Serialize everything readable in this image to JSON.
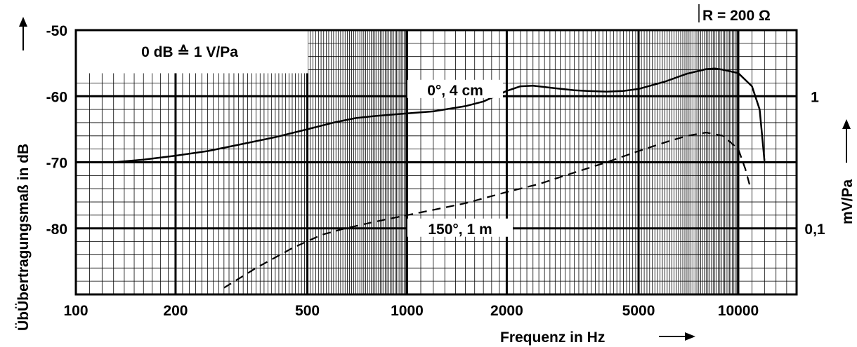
{
  "chart_data": {
    "type": "line",
    "title": "",
    "reference_note": "0 dB ≙ 1 V/Pa",
    "impedance_note": "R = 200 Ω",
    "xlabel": "Frequenz in Hz",
    "ylabel": "ÜbÜbertragungsmaß in dB",
    "y2label": "mV/Pa",
    "x_scale": "log",
    "xlim": [
      100,
      15000
    ],
    "ylim": [
      -90,
      -50
    ],
    "x_ticks": [
      100,
      200,
      500,
      1000,
      2000,
      5000,
      10000
    ],
    "x_tick_labels": [
      "100",
      "200",
      "500",
      "1000",
      "2000",
      "5000",
      "10000"
    ],
    "y_ticks": [
      -50,
      -60,
      -70,
      -80
    ],
    "y_tick_labels": [
      "-50",
      "-60",
      "-70",
      "-80"
    ],
    "y2_ticks": [
      {
        "at_db": -60,
        "label": "1"
      },
      {
        "at_db": -80,
        "label": "0,1"
      }
    ],
    "grid": true,
    "series": [
      {
        "name": "0°, 4 cm",
        "style": "solid",
        "color": "#000000",
        "x": [
          100,
          130,
          160,
          200,
          250,
          300,
          400,
          500,
          600,
          700,
          800,
          1000,
          1200,
          1500,
          1700,
          2000,
          2200,
          2400,
          2800,
          3200,
          3500,
          4000,
          4500,
          5000,
          6000,
          7000,
          8000,
          8500,
          9000,
          10000,
          11000,
          11600,
          12000
        ],
        "y": [
          -70.0,
          -70.0,
          -69.6,
          -69.0,
          -68.3,
          -67.5,
          -66.2,
          -65.0,
          -64.0,
          -63.3,
          -63.0,
          -62.6,
          -62.3,
          -61.5,
          -60.8,
          -59.2,
          -58.5,
          -58.4,
          -58.8,
          -59.1,
          -59.2,
          -59.3,
          -59.2,
          -58.9,
          -57.8,
          -56.6,
          -55.9,
          -55.8,
          -56.0,
          -56.5,
          -58.5,
          -62.0,
          -69.8
        ]
      },
      {
        "name": "150°, 1 m",
        "style": "dashed",
        "color": "#000000",
        "x": [
          280,
          350,
          450,
          550,
          650,
          800,
          1000,
          1200,
          1500,
          2000,
          2500,
          3000,
          4000,
          5000,
          6000,
          7000,
          8000,
          9000,
          10000,
          10500,
          10900
        ],
        "y": [
          -89.0,
          -86.0,
          -83.0,
          -81.0,
          -80.0,
          -79.0,
          -78.0,
          -77.2,
          -76.2,
          -74.5,
          -73.3,
          -72.0,
          -70.0,
          -68.3,
          -67.0,
          -66.0,
          -65.5,
          -66.0,
          -68.0,
          -71.0,
          -74.0
        ]
      }
    ]
  }
}
